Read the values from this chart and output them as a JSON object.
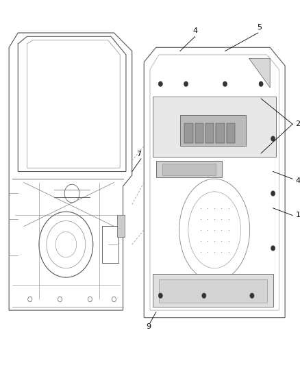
{
  "background_color": "#ffffff",
  "figsize": [
    4.38,
    5.33
  ],
  "dpi": 100,
  "gray": "#555555",
  "lgray": "#888888",
  "dgray": "#333333",
  "lw": 0.8
}
